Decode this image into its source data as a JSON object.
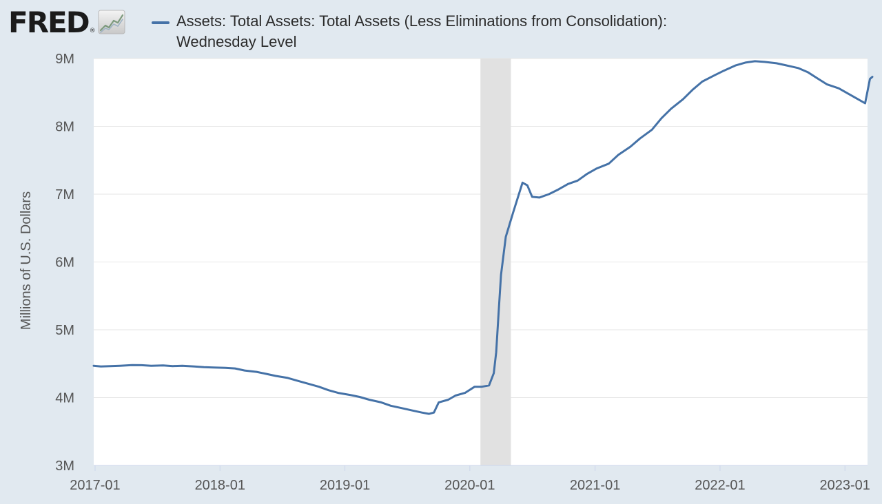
{
  "brand": {
    "logo_text": "FRED",
    "registered_mark": "®",
    "logo_icon": "trend-line-icon"
  },
  "colors": {
    "background": "#e1e9f0",
    "plot_background": "#ffffff",
    "series": "#4572a7",
    "recession": "#e1e1e1",
    "grid": "#e6e6e6",
    "text": "#555555"
  },
  "chart_data": {
    "type": "line",
    "title": "Assets: Total Assets: Total Assets (Less Eliminations from Consolidation): Wednesday Level",
    "title_lines": [
      "Assets: Total Assets: Total Assets (Less Eliminations from Consolidation):",
      "Wednesday Level"
    ],
    "xlabel": "",
    "ylabel": "Millions of U.S. Dollars",
    "xlim": [
      "2016-12-28",
      "2023-03-08"
    ],
    "ylim": [
      3000000,
      9000000
    ],
    "y_ticks": [
      3000000,
      4000000,
      5000000,
      6000000,
      7000000,
      8000000,
      9000000
    ],
    "y_tick_labels": [
      "3M",
      "4M",
      "5M",
      "6M",
      "7M",
      "8M",
      "9M"
    ],
    "x_ticks": [
      "2017-01-01",
      "2018-01-01",
      "2019-01-01",
      "2020-01-01",
      "2021-01-01",
      "2022-01-01",
      "2023-01-01"
    ],
    "x_tick_labels": [
      "2017-01",
      "2018-01",
      "2019-01",
      "2020-01",
      "2021-01",
      "2022-01",
      "2023-01"
    ],
    "grid": "horizontal",
    "legend_position": "top",
    "shaded_periods": [
      {
        "start": "2020-02-01",
        "end": "2020-04-30"
      }
    ],
    "series": [
      {
        "name": "Assets: Total Assets: Total Assets (Less Eliminations from Consolidation): Wednesday Level",
        "points": [
          [
            "2016-12-28",
            4470000
          ],
          [
            "2017-01-18",
            4460000
          ],
          [
            "2017-02-15",
            4465000
          ],
          [
            "2017-03-15",
            4470000
          ],
          [
            "2017-04-19",
            4480000
          ],
          [
            "2017-05-17",
            4478000
          ],
          [
            "2017-06-14",
            4470000
          ],
          [
            "2017-07-19",
            4475000
          ],
          [
            "2017-08-16",
            4465000
          ],
          [
            "2017-09-13",
            4470000
          ],
          [
            "2017-10-18",
            4460000
          ],
          [
            "2017-11-15",
            4450000
          ],
          [
            "2017-12-13",
            4445000
          ],
          [
            "2018-01-17",
            4440000
          ],
          [
            "2018-02-14",
            4430000
          ],
          [
            "2018-03-14",
            4400000
          ],
          [
            "2018-04-18",
            4380000
          ],
          [
            "2018-05-16",
            4350000
          ],
          [
            "2018-06-13",
            4320000
          ],
          [
            "2018-07-18",
            4290000
          ],
          [
            "2018-08-15",
            4250000
          ],
          [
            "2018-09-12",
            4210000
          ],
          [
            "2018-10-17",
            4160000
          ],
          [
            "2018-11-14",
            4110000
          ],
          [
            "2018-12-12",
            4070000
          ],
          [
            "2019-01-16",
            4040000
          ],
          [
            "2019-02-13",
            4010000
          ],
          [
            "2019-03-13",
            3970000
          ],
          [
            "2019-04-17",
            3930000
          ],
          [
            "2019-05-15",
            3880000
          ],
          [
            "2019-06-12",
            3850000
          ],
          [
            "2019-07-17",
            3810000
          ],
          [
            "2019-08-14",
            3780000
          ],
          [
            "2019-09-04",
            3760000
          ],
          [
            "2019-09-18",
            3780000
          ],
          [
            "2019-10-02",
            3930000
          ],
          [
            "2019-10-30",
            3970000
          ],
          [
            "2019-11-20",
            4030000
          ],
          [
            "2019-12-18",
            4070000
          ],
          [
            "2020-01-15",
            4160000
          ],
          [
            "2020-02-05",
            4160000
          ],
          [
            "2020-02-26",
            4180000
          ],
          [
            "2020-03-11",
            4360000
          ],
          [
            "2020-03-18",
            4670000
          ],
          [
            "2020-03-25",
            5250000
          ],
          [
            "2020-04-01",
            5810000
          ],
          [
            "2020-04-15",
            6370000
          ],
          [
            "2020-05-06",
            6720000
          ],
          [
            "2020-06-03",
            7170000
          ],
          [
            "2020-06-17",
            7130000
          ],
          [
            "2020-07-01",
            6960000
          ],
          [
            "2020-07-22",
            6950000
          ],
          [
            "2020-08-19",
            7000000
          ],
          [
            "2020-09-16",
            7070000
          ],
          [
            "2020-10-14",
            7150000
          ],
          [
            "2020-11-11",
            7200000
          ],
          [
            "2020-12-09",
            7300000
          ],
          [
            "2021-01-06",
            7380000
          ],
          [
            "2021-02-10",
            7450000
          ],
          [
            "2021-03-10",
            7580000
          ],
          [
            "2021-04-14",
            7700000
          ],
          [
            "2021-05-12",
            7820000
          ],
          [
            "2021-06-16",
            7950000
          ],
          [
            "2021-07-14",
            8120000
          ],
          [
            "2021-08-11",
            8260000
          ],
          [
            "2021-09-15",
            8400000
          ],
          [
            "2021-10-13",
            8540000
          ],
          [
            "2021-11-10",
            8660000
          ],
          [
            "2021-12-15",
            8750000
          ],
          [
            "2022-01-12",
            8820000
          ],
          [
            "2022-02-16",
            8900000
          ],
          [
            "2022-03-16",
            8940000
          ],
          [
            "2022-04-13",
            8960000
          ],
          [
            "2022-05-11",
            8950000
          ],
          [
            "2022-06-15",
            8930000
          ],
          [
            "2022-07-13",
            8900000
          ],
          [
            "2022-08-17",
            8860000
          ],
          [
            "2022-09-14",
            8800000
          ],
          [
            "2022-10-12",
            8710000
          ],
          [
            "2022-11-09",
            8620000
          ],
          [
            "2022-12-14",
            8560000
          ],
          [
            "2023-01-11",
            8480000
          ],
          [
            "2023-02-08",
            8400000
          ],
          [
            "2023-03-01",
            8340000
          ],
          [
            "2023-03-15",
            8700000
          ],
          [
            "2023-03-22",
            8730000
          ]
        ]
      }
    ]
  }
}
